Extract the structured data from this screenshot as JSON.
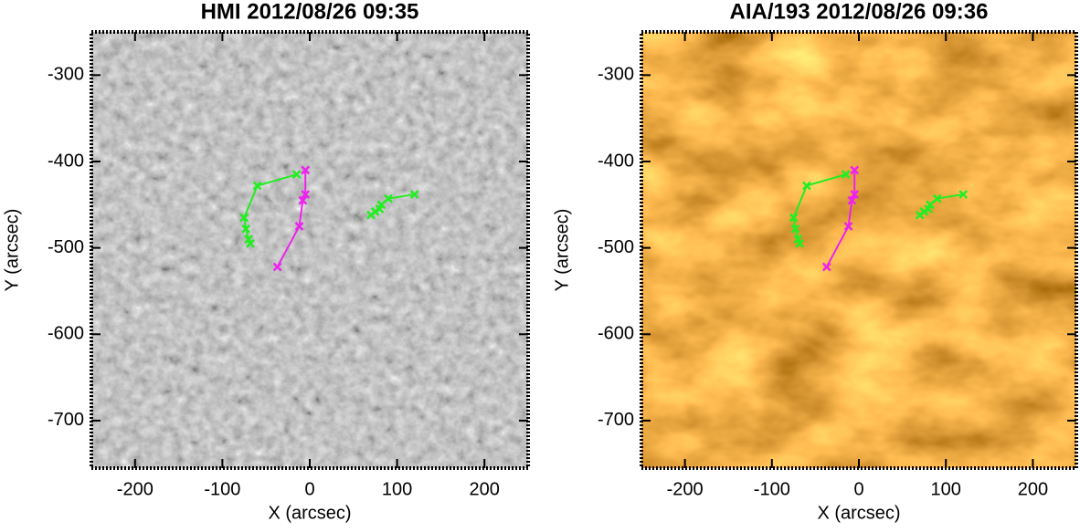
{
  "chart_data": [
    {
      "type": "line",
      "title": "HMI 2012/08/26 09:35",
      "xlabel": "X (arcsec)",
      "ylabel": "Y (arcsec)",
      "colormap": "gray",
      "xlim": [
        -250,
        250
      ],
      "ylim": [
        -755,
        -250
      ],
      "xticks": [
        -200,
        -100,
        0,
        100,
        200
      ],
      "yticks": [
        -300,
        -400,
        -500,
        -600,
        -700
      ],
      "series": [
        {
          "color": "#22ee22",
          "x": [
            -15,
            -60,
            -75,
            -73,
            -70,
            -68
          ],
          "values": [
            -415,
            -428,
            -465,
            -478,
            -490,
            -495
          ]
        },
        {
          "color": "#22ee22",
          "x": [
            70,
            75,
            80,
            82,
            90,
            120
          ],
          "values": [
            -462,
            -458,
            -455,
            -450,
            -443,
            -438
          ]
        },
        {
          "color": "#ee22ee",
          "x": [
            -5,
            -5,
            -8,
            -12,
            -37
          ],
          "values": [
            -410,
            -438,
            -445,
            -475,
            -522
          ]
        }
      ]
    },
    {
      "type": "line",
      "title": "AIA/193 2012/08/26 09:36",
      "xlabel": "X (arcsec)",
      "ylabel": "Y (arcsec)",
      "colormap": "brown",
      "xlim": [
        -250,
        250
      ],
      "ylim": [
        -755,
        -250
      ],
      "xticks": [
        -200,
        -100,
        0,
        100,
        200
      ],
      "yticks": [
        -300,
        -400,
        -500,
        -600,
        -700
      ],
      "series": [
        {
          "color": "#22ee22",
          "x": [
            -15,
            -60,
            -75,
            -73,
            -70,
            -68
          ],
          "values": [
            -415,
            -428,
            -465,
            -478,
            -490,
            -495
          ]
        },
        {
          "color": "#22ee22",
          "x": [
            70,
            75,
            80,
            82,
            90,
            120
          ],
          "values": [
            -462,
            -458,
            -455,
            -450,
            -443,
            -438
          ]
        },
        {
          "color": "#ee22ee",
          "x": [
            -5,
            -5,
            -8,
            -12,
            -37
          ],
          "values": [
            -410,
            -438,
            -445,
            -475,
            -522
          ]
        }
      ]
    }
  ]
}
